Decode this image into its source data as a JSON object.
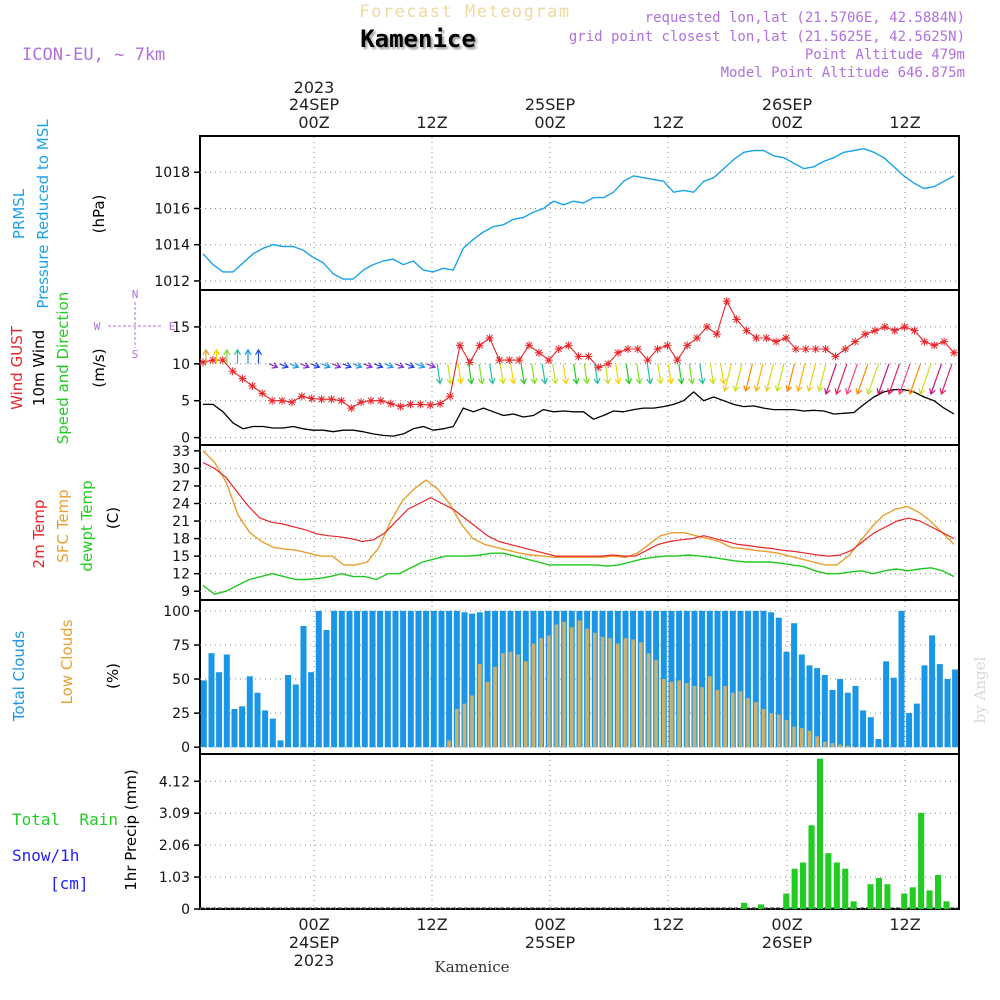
{
  "header": {
    "super_title": "Forecast Meteogram",
    "location": "Kamenice",
    "model": "ICON-EU,  ~ 7km",
    "requested": "requested lon,lat (21.5706E, 42.5884N)",
    "grid_point": "grid point closest lon,lat (21.5625E, 42.5625N)",
    "point_altitude": "Point Altitude 479m",
    "model_altitude": "Model Point Altitude 646.875m"
  },
  "time_axis": {
    "top_year": "2023",
    "dates": [
      "24SEP",
      "25SEP",
      "26SEP"
    ],
    "hours": [
      "00Z",
      "12Z",
      "00Z",
      "12Z",
      "00Z",
      "12Z"
    ],
    "bottom_year": "2023",
    "bottom_location": "Kamenice",
    "start_hour_offset": -9,
    "end_hour_offset": 55
  },
  "watermark": "by Angel",
  "colors": {
    "pressure": "#1aa3e8",
    "gust": "#e8262a",
    "wind": "#000000",
    "temp2m": "#e8262a",
    "sfc": "#e8a030",
    "dewpt": "#1fc81f",
    "clouds_total": "#1a96e6",
    "clouds_low": "#c8b070",
    "rain": "#22cc22",
    "label_green": "#22cc22",
    "label_blue": "#2222ee",
    "purple": "#b070e0",
    "grid": "#888888"
  },
  "chart_data": [
    {
      "type": "line",
      "panel": "pressure",
      "label_lines": [
        "PRMSL",
        "Pressure Reduced to MSL"
      ],
      "unit": "(hPa)",
      "ylim": [
        1011.5,
        1020
      ],
      "yticks": [
        "1012",
        "1014",
        "1016",
        "1018"
      ],
      "series": [
        {
          "name": "PRMSL",
          "values": [
            1013.5,
            1012.9,
            1012.5,
            1012.5,
            1013.0,
            1013.5,
            1013.8,
            1014.0,
            1013.9,
            1013.9,
            1013.7,
            1013.3,
            1013.0,
            1012.4,
            1012.1,
            1012.1,
            1012.6,
            1012.9,
            1013.1,
            1013.2,
            1012.9,
            1013.1,
            1012.6,
            1012.5,
            1012.7,
            1012.6,
            1013.8,
            1014.3,
            1014.7,
            1015.0,
            1015.1,
            1015.4,
            1015.5,
            1015.8,
            1016.0,
            1016.4,
            1016.2,
            1016.4,
            1016.3,
            1016.6,
            1016.6,
            1016.9,
            1017.5,
            1017.8,
            1017.7,
            1017.6,
            1017.5,
            1016.9,
            1017.0,
            1016.9,
            1017.5,
            1017.7,
            1018.2,
            1018.7,
            1019.1,
            1019.2,
            1019.2,
            1018.9,
            1018.8,
            1018.5,
            1018.2,
            1018.3,
            1018.6,
            1018.8,
            1019.1,
            1019.2,
            1019.3,
            1019.1,
            1018.8,
            1018.3,
            1017.8,
            1017.4,
            1017.1,
            1017.2,
            1017.5,
            1017.8
          ]
        }
      ]
    },
    {
      "type": "line",
      "panel": "wind",
      "label_lines": [
        "Wind GUST",
        "10m Wind",
        "Speed and Direction"
      ],
      "unit": "(m/s)",
      "compass": [
        "N",
        "S",
        "W",
        "E"
      ],
      "ylim": [
        -1,
        20
      ],
      "yticks": [
        "0",
        "5",
        "10",
        "15"
      ],
      "series": [
        {
          "name": "Wind GUST",
          "values": [
            10.2,
            10.5,
            10.5,
            9.0,
            8.0,
            7.0,
            6.0,
            5.0,
            5.0,
            4.8,
            5.6,
            5.3,
            5.2,
            5.2,
            5.0,
            4.0,
            4.8,
            5.0,
            5.0,
            4.6,
            4.2,
            4.5,
            4.5,
            4.4,
            4.6,
            5.6,
            12.5,
            10.2,
            12.5,
            13.5,
            10.5,
            10.5,
            10.5,
            12.5,
            11.5,
            10.5,
            12.0,
            12.5,
            11.0,
            11.0,
            9.5,
            10.0,
            11.5,
            12.0,
            12.0,
            10.5,
            12.0,
            12.5,
            10.5,
            12.5,
            13.5,
            15.0,
            14.0,
            18.5,
            16.0,
            14.5,
            13.5,
            13.5,
            13.0,
            13.5,
            12.0,
            12.0,
            12.0,
            12.0,
            11.0,
            12.0,
            13.0,
            14.0,
            14.5,
            15.0,
            14.5,
            15.0,
            14.5,
            13.0,
            12.5,
            13.0,
            11.5
          ]
        },
        {
          "name": "10m Wind",
          "values": [
            4.5,
            4.5,
            3.5,
            2.0,
            1.2,
            1.5,
            1.5,
            1.3,
            1.3,
            1.5,
            1.2,
            1.0,
            1.0,
            0.8,
            1.0,
            1.0,
            0.8,
            0.5,
            0.3,
            0.2,
            0.5,
            1.2,
            1.5,
            1.0,
            1.2,
            1.5,
            4.0,
            3.5,
            4.0,
            3.5,
            3.0,
            3.2,
            2.8,
            3.0,
            3.8,
            3.5,
            3.6,
            3.5,
            3.5,
            2.5,
            3.0,
            3.6,
            3.5,
            3.8,
            4.0,
            4.0,
            4.2,
            4.5,
            5.0,
            6.2,
            5.0,
            5.5,
            5.0,
            4.5,
            4.2,
            4.3,
            4.0,
            3.8,
            3.8,
            3.8,
            3.6,
            3.7,
            3.6,
            3.2,
            3.3,
            3.4,
            4.5,
            5.5,
            6.2,
            6.5,
            6.5,
            6.2,
            5.5,
            5.0,
            4.0,
            3.2
          ]
        }
      ]
    },
    {
      "type": "line",
      "panel": "temperature",
      "label_lines": [
        "2m Temp",
        "SFC Temp",
        "dewpt Temp"
      ],
      "unit": "(C)",
      "ylim": [
        7.5,
        34
      ],
      "yticks": [
        "9",
        "12",
        "15",
        "18",
        "21",
        "24",
        "27",
        "30",
        "33"
      ],
      "series": [
        {
          "name": "2m Temp",
          "values": [
            31.0,
            30.0,
            28.5,
            26.0,
            23.5,
            21.5,
            20.8,
            20.5,
            20.0,
            19.5,
            18.8,
            18.5,
            18.3,
            18.0,
            17.5,
            17.8,
            19.0,
            21.0,
            23.0,
            24.0,
            25.0,
            24.0,
            23.0,
            21.5,
            20.0,
            18.5,
            17.5,
            17.0,
            16.5,
            16.0,
            15.5,
            15.0,
            15.0,
            15.0,
            15.0,
            15.0,
            15.2,
            15.0,
            15.0,
            16.0,
            17.0,
            17.5,
            17.8,
            18.0,
            18.5,
            18.0,
            17.5,
            17.0,
            16.8,
            16.5,
            16.3,
            16.0,
            15.8,
            15.5,
            15.2,
            15.0,
            15.2,
            16.0,
            17.5,
            19.0,
            20.0,
            21.0,
            21.5,
            21.0,
            20.0,
            19.0,
            18.0
          ]
        },
        {
          "name": "SFC Temp",
          "values": [
            33.0,
            31.0,
            27.5,
            22.0,
            19.0,
            17.5,
            16.5,
            16.2,
            16.0,
            15.5,
            15.0,
            15.0,
            13.5,
            13.5,
            14.0,
            16.5,
            21.0,
            24.5,
            26.5,
            28.0,
            26.5,
            24.0,
            20.5,
            18.0,
            17.0,
            16.5,
            16.0,
            15.5,
            15.2,
            15.0,
            14.8,
            14.8,
            14.8,
            14.8,
            14.8,
            15.0,
            14.8,
            15.5,
            17.0,
            18.5,
            19.0,
            19.0,
            18.5,
            18.0,
            17.5,
            16.5,
            16.3,
            16.0,
            15.8,
            15.5,
            15.0,
            14.5,
            14.0,
            13.5,
            13.5,
            15.0,
            17.5,
            20.0,
            22.0,
            23.0,
            23.5,
            22.5,
            21.0,
            19.0,
            17.0
          ]
        },
        {
          "name": "dewpt Temp",
          "values": [
            10.0,
            8.5,
            9.0,
            10.0,
            11.0,
            11.5,
            12.0,
            11.5,
            11.0,
            11.0,
            11.2,
            11.5,
            12.0,
            11.5,
            11.5,
            11.0,
            12.0,
            12.0,
            13.0,
            14.0,
            14.5,
            15.0,
            15.0,
            15.0,
            15.2,
            15.5,
            15.5,
            15.0,
            14.5,
            14.0,
            13.5,
            13.5,
            13.5,
            13.5,
            13.5,
            13.3,
            13.5,
            14.0,
            14.5,
            14.8,
            15.0,
            15.0,
            15.2,
            15.0,
            14.8,
            14.5,
            14.2,
            14.0,
            14.0,
            14.0,
            13.8,
            13.5,
            13.2,
            12.5,
            12.0,
            12.0,
            12.3,
            12.5,
            12.0,
            12.5,
            12.8,
            12.5,
            12.8,
            13.0,
            12.5,
            11.5
          ]
        }
      ]
    },
    {
      "type": "bar",
      "panel": "clouds",
      "label_lines": [
        "Total Clouds",
        "Low Clouds"
      ],
      "unit": "(%)",
      "ylim": [
        -5,
        108
      ],
      "yticks": [
        "0",
        "25",
        "50",
        "75",
        "100"
      ],
      "series": [
        {
          "name": "Total Clouds",
          "values": [
            49,
            69,
            55,
            68,
            28,
            30,
            52,
            40,
            27,
            21,
            5,
            53,
            46,
            89,
            55,
            100,
            86,
            100,
            100,
            100,
            100,
            100,
            100,
            100,
            100,
            100,
            100,
            100,
            100,
            100,
            100,
            100,
            100,
            100,
            99,
            98,
            99,
            100,
            100,
            100,
            100,
            100,
            100,
            100,
            100,
            100,
            100,
            100,
            100,
            100,
            100,
            100,
            100,
            100,
            100,
            100,
            100,
            100,
            100,
            100,
            100,
            100,
            100,
            100,
            100,
            100,
            100,
            100,
            100,
            100,
            100,
            100,
            100,
            100,
            99,
            95,
            70,
            91,
            68,
            60,
            58,
            53,
            42,
            50,
            40,
            45,
            27,
            22,
            6,
            63,
            51,
            100,
            25,
            32,
            60,
            82,
            61,
            50,
            57
          ]
        },
        {
          "name": "Low Clouds",
          "values": [
            0,
            0,
            0,
            0,
            0,
            0,
            0,
            0,
            0,
            0,
            0,
            0,
            0,
            0,
            0,
            0,
            0,
            0,
            0,
            0,
            0,
            0,
            0,
            0,
            0,
            0,
            0,
            0,
            0,
            0,
            0,
            0,
            5,
            28,
            32,
            38,
            61,
            48,
            59,
            69,
            70,
            68,
            63,
            76,
            80,
            82,
            90,
            92,
            88,
            93,
            87,
            84,
            81,
            80,
            76,
            80,
            79,
            77,
            69,
            64,
            50,
            48,
            49,
            47,
            45,
            44,
            52,
            42,
            45,
            40,
            41,
            36,
            33,
            28,
            25,
            24,
            20,
            15,
            14,
            12,
            8,
            4,
            3,
            2,
            1,
            0,
            0,
            0,
            0,
            0,
            0,
            0,
            0,
            0,
            0,
            0,
            0,
            0,
            0
          ]
        }
      ]
    },
    {
      "type": "bar",
      "panel": "precip",
      "label_lines": [
        "Total  Rain",
        "Snow/1h",
        "[cm]"
      ],
      "axis_label": "1hr Precip (mm)",
      "ylim": [
        0,
        5.0
      ],
      "yticks": [
        "0",
        "1.03",
        "2.06",
        "3.09",
        "4.12"
      ],
      "series": [
        {
          "name": "Total Rain",
          "values": [
            0,
            0,
            0,
            0,
            0,
            0,
            0,
            0,
            0,
            0,
            0,
            0,
            0,
            0,
            0,
            0,
            0,
            0,
            0,
            0,
            0,
            0,
            0,
            0,
            0,
            0,
            0,
            0,
            0,
            0,
            0,
            0,
            0,
            0,
            0,
            0,
            0,
            0,
            0,
            0,
            0,
            0,
            0,
            0,
            0,
            0,
            0,
            0,
            0,
            0,
            0,
            0,
            0,
            0,
            0,
            0,
            0,
            0,
            0,
            0,
            0,
            0,
            0,
            0,
            0.2,
            0,
            0.15,
            0,
            0,
            0.5,
            1.3,
            1.5,
            2.7,
            4.85,
            1.8,
            1.5,
            1.3,
            0.25,
            0,
            0.8,
            1.0,
            0.8,
            0,
            0.5,
            0.7,
            3.1,
            0.6,
            1.1,
            0.25,
            0
          ]
        },
        {
          "name": "Snow/1h",
          "values": []
        }
      ]
    }
  ]
}
